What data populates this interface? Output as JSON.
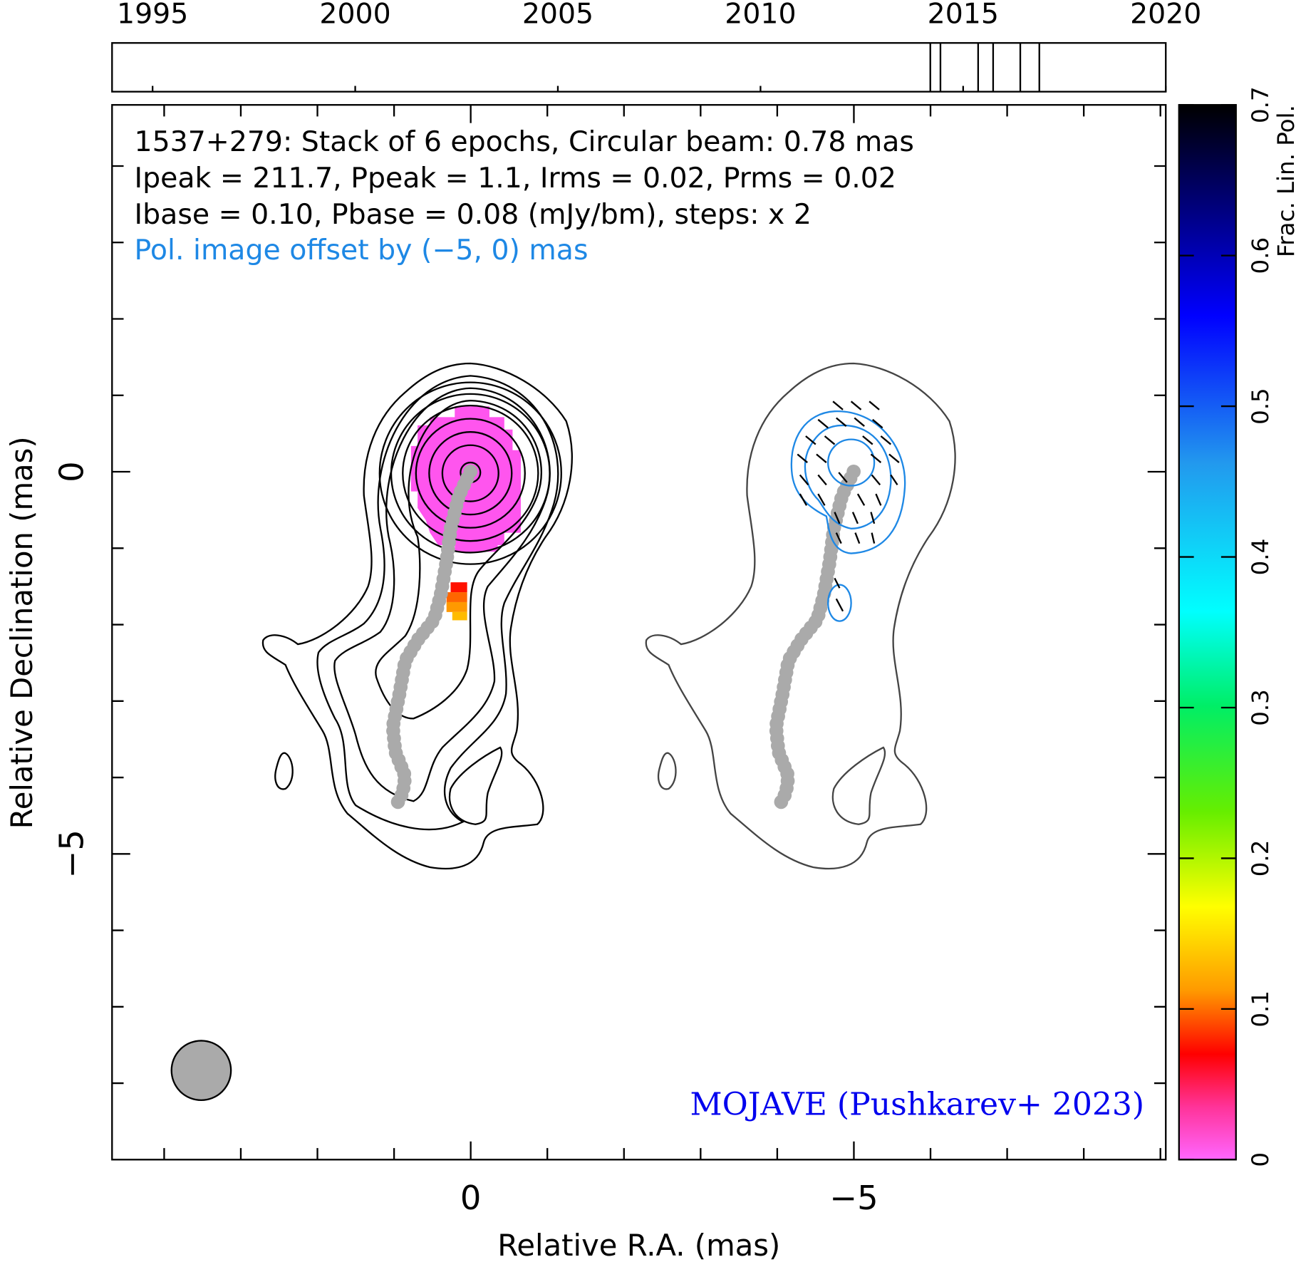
{
  "chart_data": {
    "type": "vlbi-map",
    "annotations": [
      "1537+279: Stack of 6 epochs, Circular beam: 0.78 mas",
      "Ipeak = 211.7, Ppeak = 1.1, Irms = 0.02, Prms = 0.02",
      "Ibase = 0.10, Pbase = 0.08 (mJy/bm), steps: x 2",
      "Pol. image offset by (−5, 0) mas"
    ],
    "credit": "MOJAVE (Pushkarev+ 2023)",
    "xlabel": "Relative R.A. (mas)",
    "ylabel": "Relative Declination (mas)",
    "xlim": [
      4.68,
      -9.07
    ],
    "ylim": [
      -9.0,
      4.8
    ],
    "xticks": [
      0,
      {
        "value": -5,
        "label": "−5"
      }
    ],
    "yticks": [
      0,
      {
        "value": -5,
        "label": "−5"
      }
    ],
    "xminor_ticks": [
      4,
      3,
      2,
      1,
      -1,
      -2,
      -3,
      -4,
      -6,
      -7,
      -8,
      -9
    ],
    "yminor_ticks": [
      4,
      3,
      2,
      1,
      -1,
      -2,
      -3,
      -4,
      -6,
      -7,
      -8
    ],
    "timeline": {
      "xlim": [
        1994,
        2020
      ],
      "xticks": [
        1995,
        2000,
        2005,
        2010,
        2015,
        2020
      ],
      "epochs": [
        2014.19,
        2014.44,
        2015.37,
        2015.74,
        2016.41,
        2016.88
      ]
    },
    "colorbar": {
      "label": "Frac. Lin. Pol.",
      "lim": [
        0,
        0.7
      ],
      "ticks": [
        0,
        0.1,
        0.2,
        0.3,
        0.4,
        0.5,
        0.6,
        0.7
      ]
    }
  }
}
